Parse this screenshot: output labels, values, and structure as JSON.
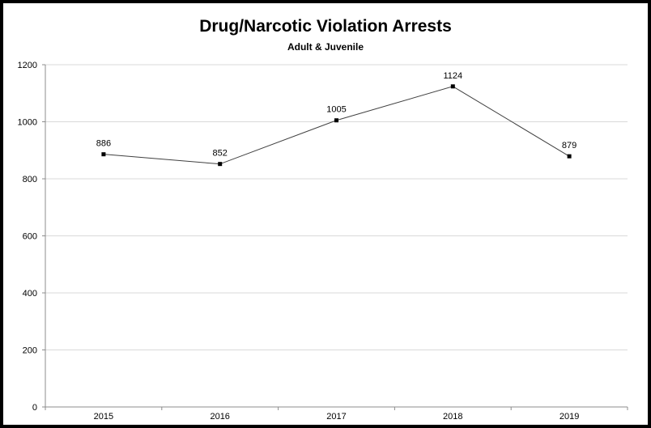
{
  "chart_data": {
    "type": "line",
    "title": "Drug/Narcotic Violation Arrests",
    "subtitle": "Adult & Juvenile",
    "xlabel": "",
    "ylabel": "",
    "categories": [
      "2015",
      "2016",
      "2017",
      "2018",
      "2019"
    ],
    "series": [
      {
        "values": [
          886,
          852,
          1005,
          1124,
          879
        ],
        "color": "#000000",
        "marker": "square"
      }
    ],
    "data_labels": [
      "886",
      "852",
      "1005",
      "1124",
      "879"
    ],
    "ylim": [
      0,
      1200
    ],
    "y_ticks": [
      "0",
      "200",
      "400",
      "600",
      "800",
      "1000",
      "1200"
    ],
    "grid": true,
    "legend": "none"
  }
}
